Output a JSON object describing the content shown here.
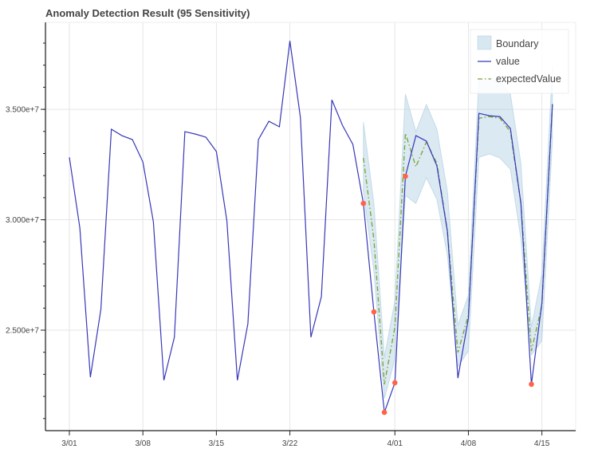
{
  "chart_data": {
    "type": "line",
    "title": "Anomaly Detection Result (95 Sensitivity)",
    "xlabel": "",
    "ylabel": "",
    "legend_position": "top-right",
    "grid": true,
    "ylim": [
      20450000,
      38940000
    ],
    "xlim": [
      "2/27",
      "4/18"
    ],
    "x_ticks": [
      "3/01",
      "3/08",
      "3/15",
      "3/22",
      "4/01",
      "4/08",
      "4/15"
    ],
    "y_ticks": [
      {
        "value": 25000000,
        "label": "2.500e+7"
      },
      {
        "value": 30000000,
        "label": "3.000e+7"
      },
      {
        "value": 35000000,
        "label": "3.500e+7"
      }
    ],
    "x": [
      "3/01",
      "3/02",
      "3/03",
      "3/04",
      "3/05",
      "3/06",
      "3/07",
      "3/08",
      "3/09",
      "3/10",
      "3/11",
      "3/12",
      "3/13",
      "3/14",
      "3/15",
      "3/16",
      "3/17",
      "3/18",
      "3/19",
      "3/20",
      "3/21",
      "3/22",
      "3/23",
      "3/24",
      "3/25",
      "3/26",
      "3/27",
      "3/28",
      "3/29",
      "3/30",
      "3/31",
      "4/01",
      "4/02",
      "4/03",
      "4/04",
      "4/05",
      "4/06",
      "4/07",
      "4/08",
      "4/09",
      "4/10",
      "4/11",
      "4/12",
      "4/13",
      "4/14",
      "4/15",
      "4/16"
    ],
    "legend": [
      {
        "name": "Boundary",
        "kind": "area"
      },
      {
        "name": "value",
        "kind": "line"
      },
      {
        "name": "expectedValue",
        "kind": "dashdot"
      }
    ],
    "series": [
      {
        "name": "value",
        "color": "#3737b8",
        "values": [
          32830000,
          29620000,
          22870000,
          25940000,
          34100000,
          33810000,
          33630000,
          32620000,
          29910000,
          22730000,
          24680000,
          33990000,
          33880000,
          33740000,
          33090000,
          29950000,
          22730000,
          25290000,
          33630000,
          34460000,
          34210000,
          38100000,
          34640000,
          24680000,
          26520000,
          35430000,
          34280000,
          33410000,
          30740000,
          25830000,
          21280000,
          22620000,
          31970000,
          33810000,
          33560000,
          32440000,
          29480000,
          22830000,
          25540000,
          34820000,
          34710000,
          34670000,
          34130000,
          30740000,
          22550000,
          26230000,
          35220000
        ]
      },
      {
        "name": "expectedValue",
        "color": "#7aa83a",
        "values": [
          null,
          null,
          null,
          null,
          null,
          null,
          null,
          null,
          null,
          null,
          null,
          null,
          null,
          null,
          null,
          null,
          null,
          null,
          null,
          null,
          null,
          null,
          null,
          null,
          null,
          null,
          null,
          null,
          32800000,
          29120000,
          22550000,
          25140000,
          33920000,
          32400000,
          33520000,
          32550000,
          29480000,
          23990000,
          25690000,
          34600000,
          34670000,
          34600000,
          33990000,
          30740000,
          24060000,
          26120000,
          35250000
        ]
      },
      {
        "name": "Boundary",
        "color": "#a9cbe0",
        "upper": [
          null,
          null,
          null,
          null,
          null,
          null,
          null,
          null,
          null,
          null,
          null,
          null,
          null,
          null,
          null,
          null,
          null,
          null,
          null,
          null,
          null,
          null,
          null,
          null,
          null,
          null,
          null,
          null,
          34420000,
          30740000,
          23770000,
          26340000,
          35690000,
          33990000,
          35220000,
          34100000,
          31280000,
          25220000,
          26590000,
          36410000,
          36410000,
          36230000,
          35690000,
          32550000,
          25140000,
          27560000,
          36950000
        ],
        "lower": [
          null,
          null,
          null,
          null,
          null,
          null,
          null,
          null,
          null,
          null,
          null,
          null,
          null,
          null,
          null,
          null,
          null,
          null,
          null,
          null,
          null,
          null,
          null,
          null,
          null,
          null,
          null,
          null,
          31280000,
          27670000,
          21900000,
          23700000,
          31100000,
          30740000,
          31900000,
          30920000,
          28390000,
          23340000,
          24060000,
          32830000,
          32980000,
          32800000,
          32290000,
          29120000,
          23880000,
          24530000,
          33630000
        ]
      }
    ],
    "anomalies": [
      "3/29",
      "3/30",
      "3/31",
      "4/01",
      "4/02",
      "4/14"
    ],
    "anomaly_color": "#ff6347"
  }
}
